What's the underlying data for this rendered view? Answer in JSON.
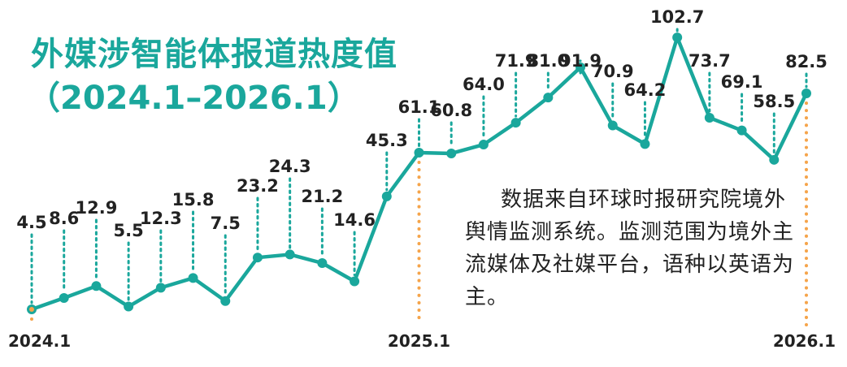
{
  "chart_data": {
    "type": "line",
    "title": "外媒涉智能体报道热度值",
    "subtitle": "（2024.1–2026.1）",
    "x_tick_labels": [
      {
        "index": 0,
        "label": "2024.1"
      },
      {
        "index": 12,
        "label": "2025.1"
      },
      {
        "index": 24,
        "label": "2026.1"
      }
    ],
    "values": [
      4.5,
      8.6,
      12.9,
      5.5,
      12.3,
      15.8,
      7.5,
      23.2,
      24.3,
      21.2,
      14.6,
      45.3,
      61.1,
      60.8,
      64.0,
      71.9,
      81.0,
      91.9,
      70.9,
      64.2,
      102.7,
      73.7,
      69.1,
      58.5,
      82.5
    ],
    "value_labels": [
      "4.5",
      "8.6",
      "12.9",
      "5.5",
      "12.3",
      "15.8",
      "7.5",
      "23.2",
      "24.3",
      "21.2",
      "14.6",
      "45.3",
      "61.1",
      "60.8",
      "64.0",
      "71.9",
      "81.0",
      "91.9",
      "70.9",
      "64.2",
      "102.7",
      "73.7",
      "69.1",
      "58.5",
      "82.5"
    ],
    "grid": false,
    "legend": "none",
    "note": "数据来自环球时报研究院境外舆情监测系统。监测范围为境外主流媒体及社媒平台，语种以英语为主。",
    "colors": {
      "line": "#1aa79c",
      "highlight": "#f5a44a",
      "text": "#222222"
    }
  }
}
